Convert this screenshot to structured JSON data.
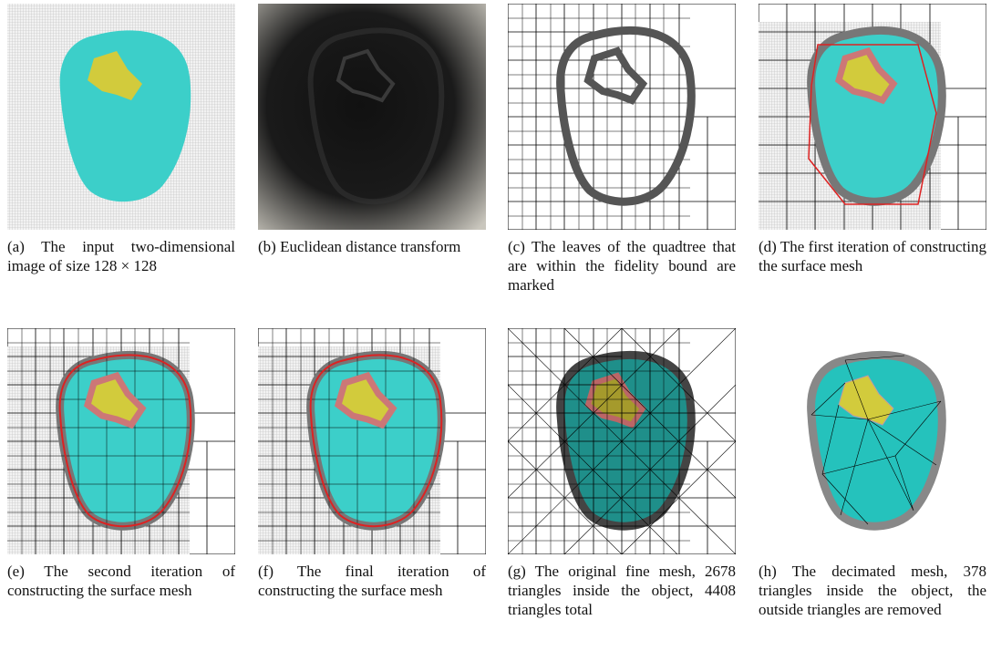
{
  "figure": {
    "panels": [
      {
        "caption": "(a) The input two-dimensional image of size 128 × 128"
      },
      {
        "caption": "(b) Euclidean distance transform"
      },
      {
        "caption": "(c) The leaves of the quadtree that are within the fidelity bound are marked"
      },
      {
        "caption": "(d) The first iteration of constructing the surface mesh"
      },
      {
        "caption": "(e) The second iteration of constructing the surface mesh"
      },
      {
        "caption": "(f) The final iteration of constructing the surface mesh"
      },
      {
        "caption": "(g) The original fine mesh, 2678 triangles inside the object, 4408 triangles total"
      },
      {
        "caption": "(h) The decimated mesh, 378 triangles inside the object, the outside triangles are removed"
      }
    ]
  }
}
